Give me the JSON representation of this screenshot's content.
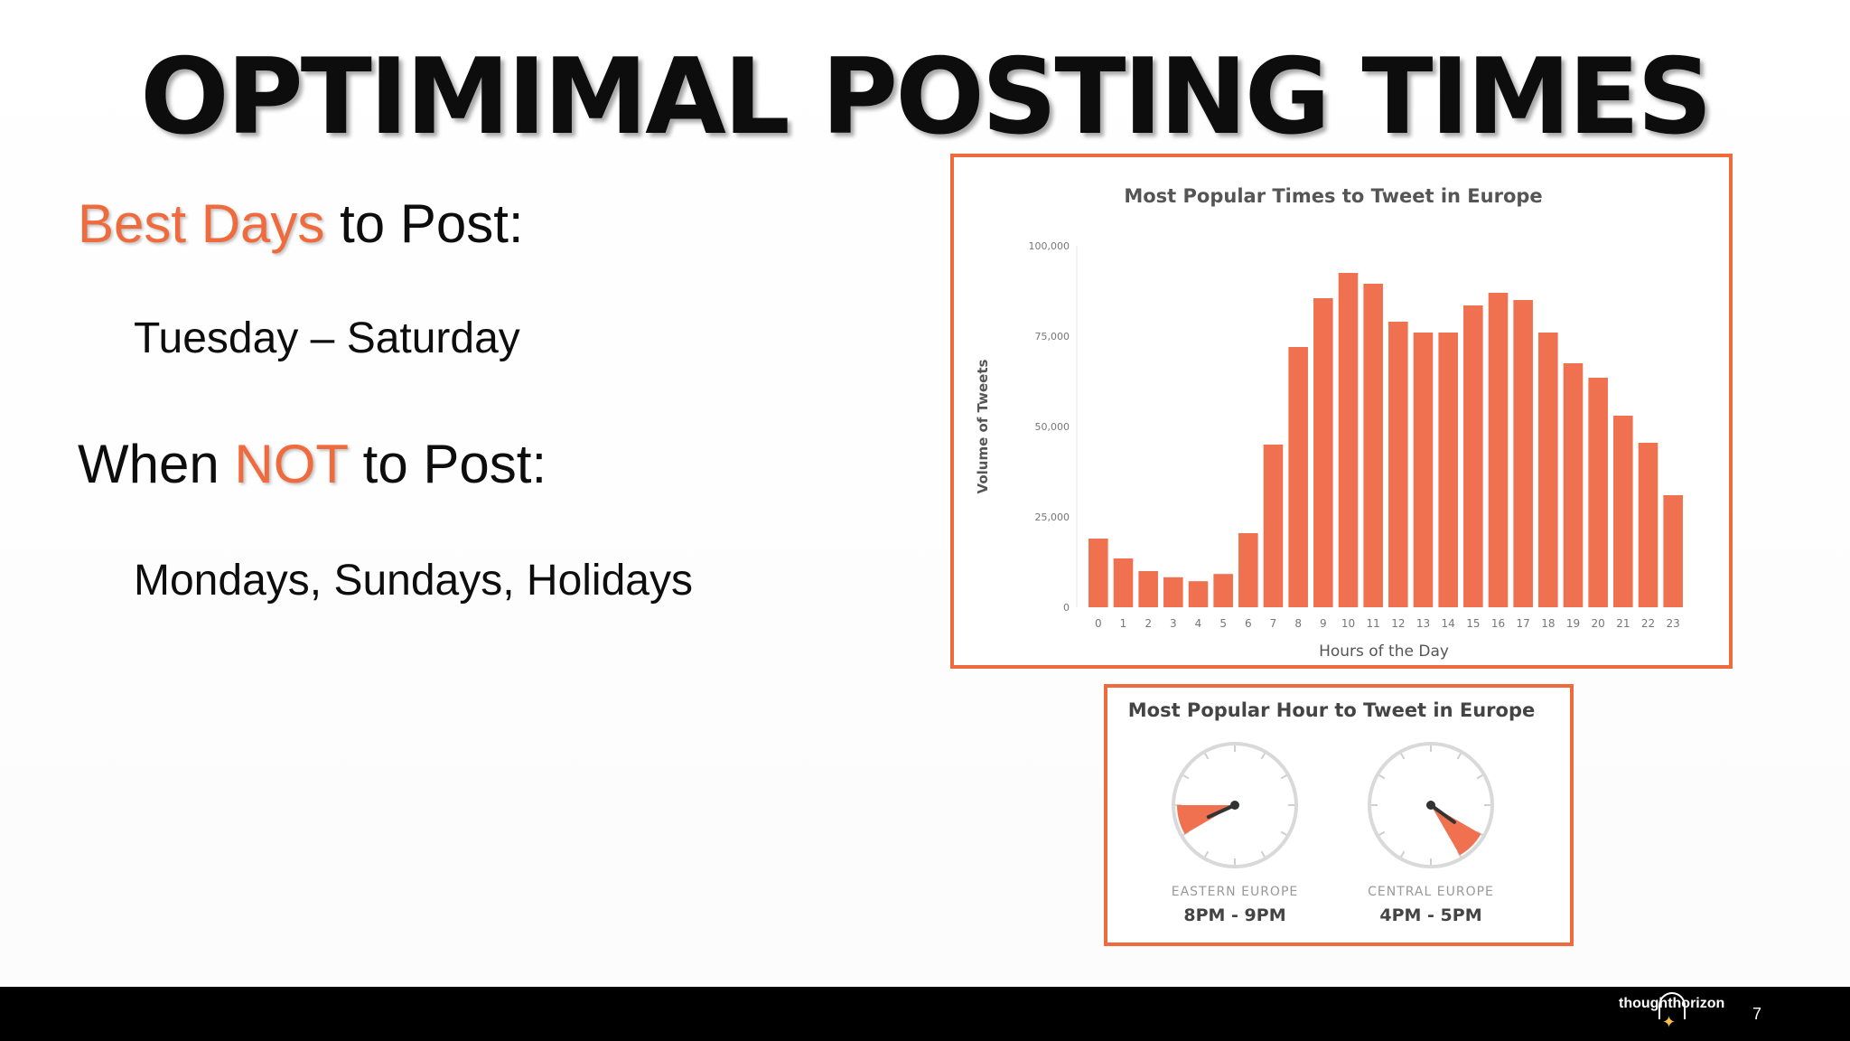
{
  "slide": {
    "title": "OPTIMIMAL POSTING TIMES",
    "page_number": "7",
    "logo_text": "thoughthorizon"
  },
  "best_days": {
    "accent": "Best Days",
    "rest": " to Post:",
    "value": "Tuesday – Saturday"
  },
  "not_post": {
    "prefix": "When ",
    "accent": "NOT",
    "rest": " to Post:",
    "value": "Mondays, Sundays, Holidays"
  },
  "colors": {
    "accent": "#ef6a3c",
    "bar": "#f07150",
    "footer": "#000000"
  },
  "chart_data": [
    {
      "type": "bar",
      "title": "Most Popular Times to Tweet in Europe",
      "xlabel": "Hours of the Day",
      "ylabel": "Volume of Tweets",
      "categories": [
        "0",
        "1",
        "2",
        "3",
        "4",
        "5",
        "6",
        "7",
        "8",
        "9",
        "10",
        "11",
        "12",
        "13",
        "14",
        "15",
        "16",
        "17",
        "18",
        "19",
        "20",
        "21",
        "22",
        "23"
      ],
      "values": [
        19000,
        13500,
        10000,
        8300,
        7200,
        9200,
        20500,
        45000,
        72000,
        85500,
        92500,
        89500,
        79000,
        76000,
        76000,
        83500,
        87000,
        85000,
        76000,
        67500,
        63500,
        53000,
        45500,
        31000
      ],
      "yticks": [
        "0",
        "25,000",
        "50,000",
        "75,000",
        "100,000"
      ],
      "ylim": [
        0,
        100000
      ],
      "grid": false,
      "legend": "none"
    },
    {
      "type": "other",
      "title": "Most Popular Hour to Tweet in Europe",
      "clocks": [
        {
          "label": "EASTERN EUROPE",
          "time": "8PM - 9PM",
          "start_hour": 8,
          "end_hour": 9
        },
        {
          "label": "CENTRAL EUROPE",
          "time": "4PM - 5PM",
          "start_hour": 4,
          "end_hour": 5
        }
      ]
    }
  ]
}
